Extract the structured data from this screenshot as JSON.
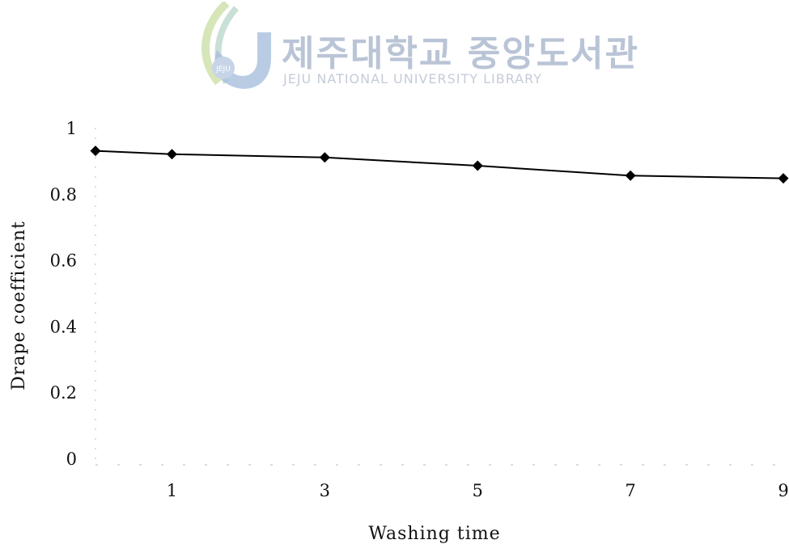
{
  "watermark": {
    "title": "제주대학교 중앙도서관",
    "subtitle": "JEJU NATIONAL UNIVERSITY LIBRARY",
    "logo_text": "JEJU"
  },
  "chart_data": {
    "type": "line",
    "xlabel": "Washing time",
    "ylabel": "Drape coefficient",
    "ylim": [
      0,
      1
    ],
    "yticks": [
      0,
      0.2,
      0.4,
      0.6,
      0.8,
      1
    ],
    "ytick_labels": [
      "0",
      "0.2",
      "0.4",
      "0.6",
      "0.8",
      "1"
    ],
    "xtick_labels": [
      "1",
      "3",
      "5",
      "7",
      "9"
    ],
    "x": [
      0,
      1,
      3,
      5,
      7,
      9
    ],
    "series": [
      {
        "values": [
          0.93,
          0.92,
          0.91,
          0.885,
          0.855,
          0.847
        ],
        "marker": "diamond",
        "color": "#000000"
      }
    ],
    "grid": false,
    "legend": "none"
  }
}
